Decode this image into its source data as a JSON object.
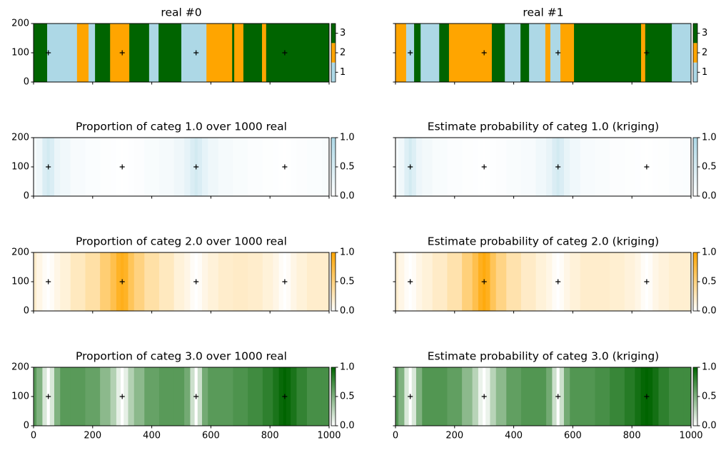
{
  "chart_data": [
    {
      "type": "categorical",
      "title": "real #0",
      "edges": [
        0,
        46,
        147,
        186,
        208,
        259,
        324,
        391,
        423,
        500,
        585,
        672,
        679,
        710,
        773,
        787,
        1000
      ],
      "values": [
        3,
        1,
        2,
        1,
        3,
        2,
        3,
        1,
        3,
        1,
        2,
        3,
        2,
        3,
        2,
        3
      ],
      "cmap": [
        "#add8e6",
        "#ffa500",
        "#006400"
      ],
      "clim": [
        0.5,
        3.5
      ],
      "cticks": [
        1,
        2,
        3
      ],
      "xlim": [
        0,
        1000
      ],
      "ylim": [
        0,
        200
      ],
      "xticks": [
        0,
        200,
        400,
        600,
        800,
        1000
      ],
      "yticks": [
        0,
        100,
        200
      ],
      "xtick_labels": false,
      "ytick_labels": true,
      "points": {
        "x": [
          50,
          300,
          550,
          850
        ],
        "y": [
          100,
          100,
          100,
          100
        ]
      }
    },
    {
      "type": "categorical",
      "title": "real #1",
      "edges": [
        0,
        36,
        63,
        85,
        148,
        181,
        326,
        370,
        423,
        452,
        507,
        524,
        558,
        604,
        831,
        845,
        935,
        1000
      ],
      "values": [
        2,
        1,
        3,
        1,
        3,
        2,
        3,
        1,
        3,
        1,
        2,
        1,
        2,
        3,
        2,
        3,
        1
      ],
      "cmap": [
        "#add8e6",
        "#ffa500",
        "#006400"
      ],
      "clim": [
        0.5,
        3.5
      ],
      "cticks": [
        1,
        2,
        3
      ],
      "xlim": [
        0,
        1000
      ],
      "ylim": [
        0,
        200
      ],
      "xticks": [
        0,
        200,
        400,
        600,
        800,
        1000
      ],
      "yticks": [
        0,
        100,
        200
      ],
      "xtick_labels": false,
      "ytick_labels": false,
      "points": {
        "x": [
          50,
          300,
          550,
          850
        ],
        "y": [
          100,
          100,
          100,
          100
        ]
      }
    },
    {
      "type": "probability",
      "title": "Proportion of categ 1.0 over 1000 real",
      "x": [
        0,
        20,
        40,
        50,
        60,
        80,
        100,
        150,
        200,
        250,
        270,
        290,
        300,
        310,
        330,
        350,
        400,
        450,
        500,
        520,
        540,
        550,
        560,
        580,
        600,
        650,
        700,
        750,
        800,
        820,
        840,
        850,
        860,
        880,
        900,
        950,
        1000
      ],
      "values": [
        0.12,
        0.2,
        0.45,
        0.55,
        0.45,
        0.25,
        0.18,
        0.1,
        0.06,
        0.03,
        0.02,
        0.01,
        0,
        0.01,
        0.02,
        0.04,
        0.08,
        0.12,
        0.2,
        0.3,
        0.45,
        0.55,
        0.45,
        0.3,
        0.2,
        0.12,
        0.08,
        0.05,
        0.03,
        0.02,
        0.01,
        0,
        0.01,
        0.02,
        0.04,
        0.06,
        0.08
      ],
      "cmap": [
        "#ffffff",
        "#add8e6"
      ],
      "clim": [
        0,
        1
      ],
      "cticks": [
        {
          "value": 0,
          "label": "0.0"
        },
        {
          "value": 0.5,
          "label": "0.5"
        },
        {
          "value": 1,
          "label": "1.0"
        }
      ],
      "xlim": [
        0,
        1000
      ],
      "ylim": [
        0,
        200
      ],
      "xticks": [
        0,
        200,
        400,
        600,
        800,
        1000
      ],
      "yticks": [
        0,
        100,
        200
      ],
      "xtick_labels": false,
      "ytick_labels": true,
      "points": {
        "x": [
          50,
          300,
          550,
          850
        ],
        "y": [
          100,
          100,
          100,
          100
        ]
      }
    },
    {
      "type": "probability",
      "title": "Estimate probability of categ 1.0 (kriging)",
      "x": [
        0,
        20,
        40,
        50,
        60,
        80,
        100,
        150,
        200,
        250,
        270,
        290,
        300,
        310,
        330,
        350,
        400,
        450,
        500,
        520,
        540,
        550,
        560,
        580,
        600,
        650,
        700,
        750,
        800,
        820,
        840,
        850,
        860,
        880,
        900,
        950,
        1000
      ],
      "values": [
        0.1,
        0.18,
        0.42,
        0.55,
        0.42,
        0.22,
        0.15,
        0.08,
        0.05,
        0.03,
        0.02,
        0.01,
        0,
        0.01,
        0.02,
        0.04,
        0.07,
        0.1,
        0.18,
        0.28,
        0.45,
        0.55,
        0.45,
        0.28,
        0.18,
        0.1,
        0.07,
        0.04,
        0.03,
        0.02,
        0.01,
        0,
        0.01,
        0.02,
        0.03,
        0.05,
        0.06
      ],
      "cmap": [
        "#ffffff",
        "#add8e6"
      ],
      "clim": [
        0,
        1
      ],
      "cticks": [
        {
          "value": 0,
          "label": "0.0"
        },
        {
          "value": 0.5,
          "label": "0.5"
        },
        {
          "value": 1,
          "label": "1.0"
        }
      ],
      "xlim": [
        0,
        1000
      ],
      "ylim": [
        0,
        200
      ],
      "xticks": [
        0,
        200,
        400,
        600,
        800,
        1000
      ],
      "yticks": [
        0,
        100,
        200
      ],
      "xtick_labels": false,
      "ytick_labels": false,
      "points": {
        "x": [
          50,
          300,
          550,
          850
        ],
        "y": [
          100,
          100,
          100,
          100
        ]
      }
    },
    {
      "type": "probability",
      "title": "Proportion of categ 2.0 over 1000 real",
      "x": [
        0,
        20,
        40,
        50,
        60,
        80,
        100,
        150,
        200,
        250,
        270,
        290,
        300,
        310,
        330,
        350,
        400,
        450,
        500,
        520,
        540,
        550,
        560,
        580,
        600,
        650,
        700,
        750,
        800,
        820,
        840,
        850,
        860,
        880,
        900,
        950,
        1000
      ],
      "values": [
        0.2,
        0.1,
        0.03,
        0,
        0.03,
        0.1,
        0.15,
        0.25,
        0.35,
        0.55,
        0.7,
        0.85,
        0.9,
        0.85,
        0.65,
        0.5,
        0.35,
        0.25,
        0.15,
        0.1,
        0.03,
        0,
        0.03,
        0.1,
        0.15,
        0.2,
        0.22,
        0.2,
        0.15,
        0.1,
        0.03,
        0,
        0.03,
        0.1,
        0.15,
        0.2,
        0.2
      ],
      "cmap": [
        "#ffffff",
        "#ffa500"
      ],
      "clim": [
        0,
        1
      ],
      "cticks": [
        {
          "value": 0,
          "label": "0.0"
        },
        {
          "value": 0.5,
          "label": "0.5"
        },
        {
          "value": 1,
          "label": "1.0"
        }
      ],
      "xlim": [
        0,
        1000
      ],
      "ylim": [
        0,
        200
      ],
      "xticks": [
        0,
        200,
        400,
        600,
        800,
        1000
      ],
      "yticks": [
        0,
        100,
        200
      ],
      "xtick_labels": false,
      "ytick_labels": true,
      "points": {
        "x": [
          50,
          300,
          550,
          850
        ],
        "y": [
          100,
          100,
          100,
          100
        ]
      }
    },
    {
      "type": "probability",
      "title": "Estimate probability of categ 2.0 (kriging)",
      "x": [
        0,
        20,
        40,
        50,
        60,
        80,
        100,
        150,
        200,
        250,
        270,
        290,
        300,
        310,
        330,
        350,
        400,
        450,
        500,
        520,
        540,
        550,
        560,
        580,
        600,
        650,
        700,
        750,
        800,
        820,
        840,
        850,
        860,
        880,
        900,
        950,
        1000
      ],
      "values": [
        0.18,
        0.1,
        0.03,
        0,
        0.03,
        0.1,
        0.15,
        0.22,
        0.32,
        0.52,
        0.7,
        0.88,
        0.95,
        0.88,
        0.65,
        0.48,
        0.32,
        0.22,
        0.15,
        0.1,
        0.03,
        0,
        0.03,
        0.1,
        0.15,
        0.2,
        0.2,
        0.18,
        0.14,
        0.1,
        0.03,
        0,
        0.03,
        0.1,
        0.14,
        0.18,
        0.18
      ],
      "cmap": [
        "#ffffff",
        "#ffa500"
      ],
      "clim": [
        0,
        1
      ],
      "cticks": [
        {
          "value": 0,
          "label": "0.0"
        },
        {
          "value": 0.5,
          "label": "0.5"
        },
        {
          "value": 1,
          "label": "1.0"
        }
      ],
      "xlim": [
        0,
        1000
      ],
      "ylim": [
        0,
        200
      ],
      "xticks": [
        0,
        200,
        400,
        600,
        800,
        1000
      ],
      "yticks": [
        0,
        100,
        200
      ],
      "xtick_labels": false,
      "ytick_labels": false,
      "points": {
        "x": [
          50,
          300,
          550,
          850
        ],
        "y": [
          100,
          100,
          100,
          100
        ]
      }
    },
    {
      "type": "probability",
      "title": "Proportion of categ 3.0 over 1000 real",
      "x": [
        0,
        20,
        40,
        50,
        60,
        80,
        100,
        150,
        200,
        250,
        270,
        290,
        300,
        310,
        330,
        350,
        400,
        450,
        500,
        520,
        540,
        550,
        560,
        580,
        600,
        650,
        700,
        750,
        800,
        820,
        840,
        850,
        860,
        880,
        900,
        950,
        1000
      ],
      "values": [
        0.65,
        0.5,
        0.15,
        0,
        0.15,
        0.5,
        0.65,
        0.65,
        0.6,
        0.45,
        0.3,
        0.1,
        0,
        0.1,
        0.3,
        0.45,
        0.6,
        0.65,
        0.65,
        0.55,
        0.2,
        0,
        0.2,
        0.55,
        0.65,
        0.65,
        0.7,
        0.75,
        0.82,
        0.9,
        0.97,
        1,
        0.97,
        0.9,
        0.8,
        0.72,
        0.72
      ],
      "cmap": [
        "#ffffff",
        "#006400"
      ],
      "clim": [
        0,
        1
      ],
      "cticks": [
        {
          "value": 0,
          "label": "0.0"
        },
        {
          "value": 0.5,
          "label": "0.5"
        },
        {
          "value": 1,
          "label": "1.0"
        }
      ],
      "xlim": [
        0,
        1000
      ],
      "ylim": [
        0,
        200
      ],
      "xticks": [
        0,
        200,
        400,
        600,
        800,
        1000
      ],
      "yticks": [
        0,
        100,
        200
      ],
      "xtick_labels": true,
      "ytick_labels": true,
      "points": {
        "x": [
          50,
          300,
          550,
          850
        ],
        "y": [
          100,
          100,
          100,
          100
        ]
      }
    },
    {
      "type": "probability",
      "title": "Estimate probability of categ 3.0 (kriging)",
      "x": [
        0,
        20,
        40,
        50,
        60,
        80,
        100,
        150,
        200,
        250,
        270,
        290,
        300,
        310,
        330,
        350,
        400,
        450,
        500,
        520,
        540,
        550,
        560,
        580,
        600,
        650,
        700,
        750,
        800,
        820,
        840,
        850,
        860,
        880,
        900,
        950,
        1000
      ],
      "values": [
        0.68,
        0.5,
        0.15,
        0,
        0.15,
        0.5,
        0.68,
        0.68,
        0.62,
        0.45,
        0.28,
        0.08,
        0,
        0.08,
        0.28,
        0.45,
        0.62,
        0.68,
        0.68,
        0.55,
        0.2,
        0,
        0.2,
        0.55,
        0.68,
        0.68,
        0.72,
        0.78,
        0.85,
        0.92,
        0.98,
        1,
        0.98,
        0.92,
        0.82,
        0.75,
        0.75
      ],
      "cmap": [
        "#ffffff",
        "#006400"
      ],
      "clim": [
        0,
        1
      ],
      "cticks": [
        {
          "value": 0,
          "label": "0.0"
        },
        {
          "value": 0.5,
          "label": "0.5"
        },
        {
          "value": 1,
          "label": "1.0"
        }
      ],
      "xlim": [
        0,
        1000
      ],
      "ylim": [
        0,
        200
      ],
      "xticks": [
        0,
        200,
        400,
        600,
        800,
        1000
      ],
      "yticks": [
        0,
        100,
        200
      ],
      "xtick_labels": true,
      "ytick_labels": false,
      "points": {
        "x": [
          50,
          300,
          550,
          850
        ],
        "y": [
          100,
          100,
          100,
          100
        ]
      }
    }
  ]
}
